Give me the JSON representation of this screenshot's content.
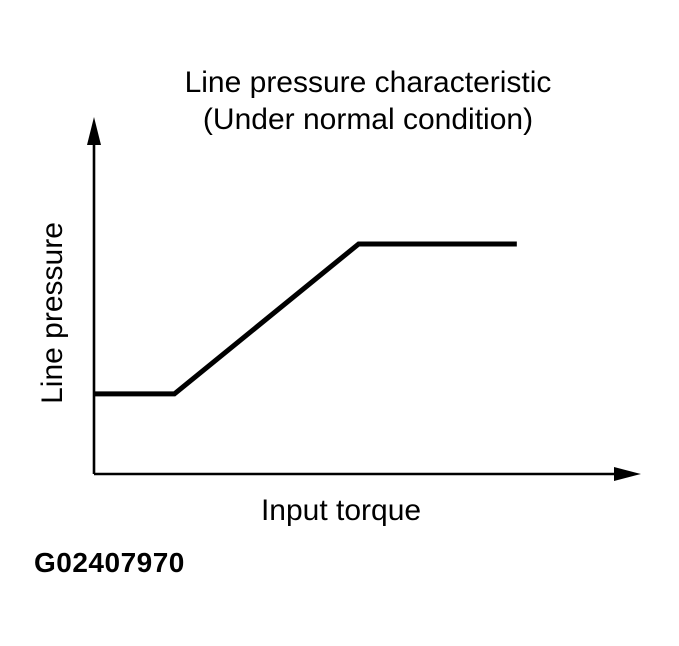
{
  "figure": {
    "code": "G02407970",
    "background_color": "#ffffff",
    "ink_color": "#000000"
  },
  "chart_data": {
    "type": "line",
    "title": "Line pressure characteristic",
    "subtitle": "(Under normal condition)",
    "xlabel": "Input torque",
    "ylabel": "Line pressure",
    "grid": false,
    "tick_labels": [],
    "axis_arrows": true,
    "legend": false,
    "xlim": [
      0,
      1
    ],
    "ylim": [
      0,
      1
    ],
    "series": [
      {
        "name": "line-pressure-curve",
        "x": [
          0,
          0.154,
          0.507,
          0.81
        ],
        "y": [
          0.242,
          0.242,
          0.695,
          0.695
        ]
      }
    ],
    "line_color": "#000000",
    "line_width": 5,
    "axis_color": "#000000",
    "axis_width": 2.6
  }
}
